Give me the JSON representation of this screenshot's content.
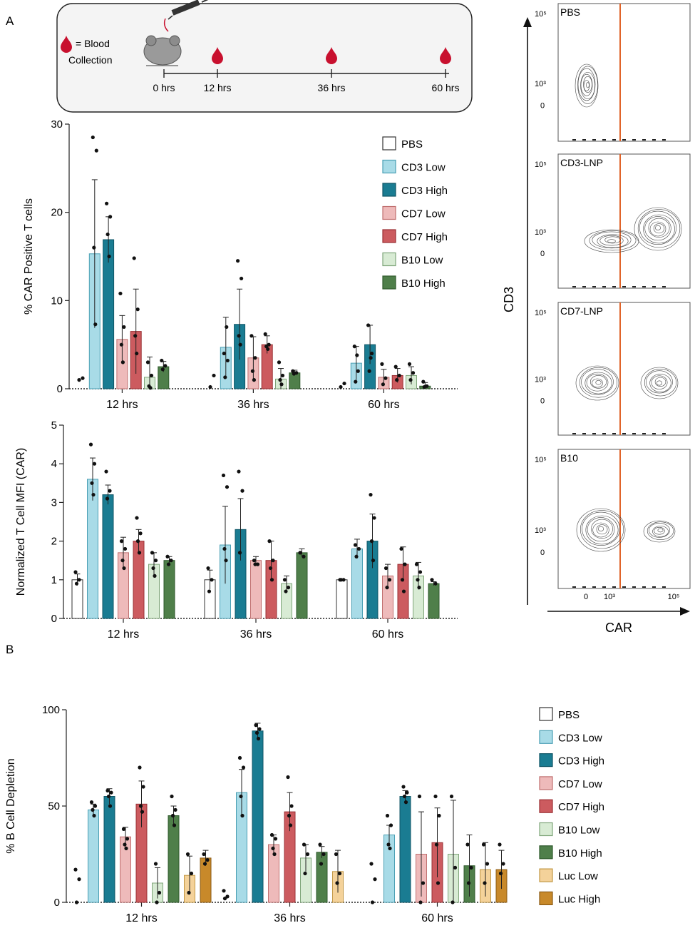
{
  "panels": {
    "a_label": "A",
    "b_label": "B"
  },
  "timeline": {
    "legend_line1": "= Blood",
    "legend_line2": "Collection",
    "times": [
      "0 hrs",
      "12 hrs",
      "36 hrs",
      "60 hrs"
    ],
    "blood_color": "#c8102e"
  },
  "series_meta": [
    {
      "name": "PBS",
      "fill": "#ffffff",
      "stroke": "#333333"
    },
    {
      "name": "CD3 Low",
      "fill": "#a8dbe7",
      "stroke": "#4a9fb4"
    },
    {
      "name": "CD3 High",
      "fill": "#1a7c92",
      "stroke": "#0f5566"
    },
    {
      "name": "CD7 Low",
      "fill": "#eebaba",
      "stroke": "#c07070"
    },
    {
      "name": "CD7 High",
      "fill": "#cc5b5f",
      "stroke": "#9a3034"
    },
    {
      "name": "B10 Low",
      "fill": "#d8ebd4",
      "stroke": "#7fa57a"
    },
    {
      "name": "B10 High",
      "fill": "#4f7f4a",
      "stroke": "#2f5a2c"
    },
    {
      "name": "Luc Low",
      "fill": "#f4d29a",
      "stroke": "#c29845"
    },
    {
      "name": "Luc  High",
      "fill": "#c8892a",
      "stroke": "#8a5a14"
    }
  ],
  "chart_data": [
    {
      "type": "bar",
      "title": "",
      "ylabel": "%  CAR Positive T cells",
      "xlabel": "",
      "categories": [
        "12 hrs",
        "36 hrs",
        "60 hrs"
      ],
      "ylim": [
        0,
        30
      ],
      "yticks": [
        "0",
        "10",
        "20",
        "30"
      ],
      "series": [
        {
          "name": "PBS",
          "values": [
            0,
            0,
            0
          ]
        },
        {
          "name": "CD3 Low",
          "values": [
            15.3,
            4.7,
            2.9
          ]
        },
        {
          "name": "CD3 High",
          "values": [
            16.9,
            7.3,
            5.0
          ]
        },
        {
          "name": "CD7 Low",
          "values": [
            5.6,
            3.5,
            1.3
          ]
        },
        {
          "name": "CD7 High",
          "values": [
            6.5,
            5.0,
            1.5
          ]
        },
        {
          "name": "B10 Low",
          "values": [
            1.3,
            1.1,
            1.5
          ]
        },
        {
          "name": "B10 High",
          "values": [
            2.5,
            1.8,
            0.3
          ]
        }
      ],
      "errors": [
        [
          0,
          0,
          0
        ],
        [
          8.4,
          3.4,
          1.9
        ],
        [
          2.6,
          4.0,
          2.2
        ],
        [
          2.7,
          2.4,
          0.9
        ],
        [
          4.8,
          1.0,
          0.8
        ],
        [
          2.3,
          1.2,
          1.0
        ],
        [
          0.6,
          0.3,
          0.4
        ]
      ],
      "points": [
        [
          [
            1.0,
            1.2
          ],
          [
            0.2,
            1.5
          ],
          [
            0.2,
            0.6
          ]
        ],
        [
          [
            28.5,
            27.0,
            16.0,
            7.3
          ],
          [
            4.0,
            3.2,
            1.3,
            7.0
          ],
          [
            4.8,
            2.0,
            0.8,
            3.8
          ]
        ],
        [
          [
            21.0,
            19.5,
            17.5,
            15.0
          ],
          [
            14.5,
            12.5,
            6.0,
            5.0
          ],
          [
            7.2,
            4.0,
            2.0,
            3.5
          ]
        ],
        [
          [
            10.8,
            7.0,
            5.0,
            3.0
          ],
          [
            6.0,
            3.5,
            2.0,
            1.0
          ],
          [
            2.8,
            1.2,
            0.5
          ]
        ],
        [
          [
            14.8,
            9.0,
            6.0,
            4.0
          ],
          [
            6.2,
            5.0,
            4.8,
            4.5
          ],
          [
            2.5,
            1.5,
            1.0
          ]
        ],
        [
          [
            3.0,
            1.5,
            0.3,
            0.1
          ],
          [
            3.0,
            1.5,
            1.0,
            0.5
          ],
          [
            2.8,
            1.8,
            1.0
          ]
        ],
        [
          [
            3.2,
            2.6,
            2.2
          ],
          [
            2.0,
            1.8,
            1.7
          ],
          [
            0.8,
            0.3,
            0.2
          ]
        ]
      ],
      "legend": "top-right"
    },
    {
      "type": "bar",
      "title": "",
      "ylabel": "Normalized T Cell MFI (CAR)",
      "xlabel": "",
      "categories": [
        "12 hrs",
        "36 hrs",
        "60 hrs"
      ],
      "ylim": [
        0,
        5
      ],
      "yticks": [
        "0",
        "1",
        "2",
        "3",
        "4",
        "5"
      ],
      "series": [
        {
          "name": "PBS",
          "values": [
            1.0,
            1.0,
            1.0
          ]
        },
        {
          "name": "CD3 Low",
          "values": [
            3.6,
            1.9,
            1.8
          ]
        },
        {
          "name": "CD3 High",
          "values": [
            3.2,
            2.3,
            2.0
          ]
        },
        {
          "name": "CD7 Low",
          "values": [
            1.7,
            1.5,
            1.1
          ]
        },
        {
          "name": "CD7 High",
          "values": [
            2.0,
            1.5,
            1.4
          ]
        },
        {
          "name": "B10 Low",
          "values": [
            1.4,
            0.9,
            1.1
          ]
        },
        {
          "name": "B10 High",
          "values": [
            1.5,
            1.7,
            0.9
          ]
        }
      ],
      "errors": [
        [
          0.15,
          0.25,
          0.02
        ],
        [
          0.55,
          1.0,
          0.25
        ],
        [
          0.25,
          0.8,
          0.7
        ],
        [
          0.4,
          0.1,
          0.3
        ],
        [
          0.3,
          0.5,
          0.45
        ],
        [
          0.3,
          0.2,
          0.35
        ],
        [
          0.1,
          0.1,
          0.05
        ]
      ],
      "points": [
        [
          [
            1.2,
            1.0,
            0.9
          ],
          [
            1.3,
            1.0,
            0.7
          ],
          [
            1.0,
            1.0,
            1.0
          ]
        ],
        [
          [
            4.5,
            4.0,
            3.5,
            3.2
          ],
          [
            3.7,
            3.4,
            1.8,
            1.5
          ],
          [
            1.9,
            1.8,
            1.6
          ]
        ],
        [
          [
            3.8,
            3.3,
            3.1
          ],
          [
            3.8,
            3.3,
            1.7
          ],
          [
            3.2,
            2.6,
            2.0,
            1.5
          ]
        ],
        [
          [
            2.0,
            1.8,
            1.5,
            1.3
          ],
          [
            1.5,
            1.4,
            1.4
          ],
          [
            1.3,
            1.0,
            0.8
          ]
        ],
        [
          [
            2.6,
            2.2,
            2.0,
            1.7
          ],
          [
            2.0,
            1.5,
            1.3,
            1.0
          ],
          [
            1.8,
            1.4,
            1.0,
            0.7
          ]
        ],
        [
          [
            1.7,
            1.5,
            1.3,
            1.1
          ],
          [
            1.0,
            0.8,
            0.7
          ],
          [
            1.4,
            1.2,
            1.0,
            0.8
          ]
        ],
        [
          [
            1.6,
            1.5,
            1.4
          ],
          [
            1.7,
            1.6
          ],
          [
            1.0,
            0.9
          ]
        ]
      ],
      "legend": "none"
    },
    {
      "type": "bar",
      "title": "",
      "ylabel": "% B Cell Depletion",
      "xlabel": "",
      "categories": [
        "12 hrs",
        "36 hrs",
        "60 hrs"
      ],
      "ylim": [
        0,
        100
      ],
      "yticks": [
        "0",
        "50",
        "100"
      ],
      "series": [
        {
          "name": "PBS",
          "values": [
            0,
            0,
            0
          ]
        },
        {
          "name": "CD3 Low",
          "values": [
            48,
            57,
            35
          ]
        },
        {
          "name": "CD3 High",
          "values": [
            55,
            89,
            55
          ]
        },
        {
          "name": "CD7 Low",
          "values": [
            34,
            30,
            25
          ]
        },
        {
          "name": "CD7 High",
          "values": [
            51,
            47,
            31
          ]
        },
        {
          "name": "B10 Low",
          "values": [
            10,
            23,
            25
          ]
        },
        {
          "name": "B10 High",
          "values": [
            45,
            26,
            19
          ]
        },
        {
          "name": "Luc Low",
          "values": [
            14,
            16,
            17
          ]
        },
        {
          "name": "Luc  High",
          "values": [
            23,
            0,
            17
          ]
        }
      ],
      "errors": [
        [
          0,
          0,
          0
        ],
        [
          3,
          12,
          5
        ],
        [
          4,
          4,
          3
        ],
        [
          5,
          5,
          22
        ],
        [
          12,
          10,
          18
        ],
        [
          8,
          7,
          28
        ],
        [
          5,
          3,
          16
        ],
        [
          10,
          11,
          14
        ],
        [
          4,
          0,
          10
        ]
      ],
      "points": [
        [
          [
            17,
            12,
            0
          ],
          [
            6,
            3,
            2
          ],
          [
            20,
            12,
            0
          ]
        ],
        [
          [
            52,
            50,
            48,
            45
          ],
          [
            75,
            70,
            55,
            45
          ],
          [
            45,
            40,
            30,
            28
          ]
        ],
        [
          [
            58,
            57,
            55,
            50
          ],
          [
            92,
            90,
            88,
            85
          ],
          [
            60,
            57,
            55,
            52
          ]
        ],
        [
          [
            38,
            33,
            30,
            28
          ],
          [
            35,
            33,
            28,
            25
          ],
          [
            55,
            10,
            0
          ]
        ],
        [
          [
            70,
            60,
            50,
            47
          ],
          [
            65,
            50,
            45,
            40
          ],
          [
            55,
            45,
            30,
            10
          ]
        ],
        [
          [
            20,
            5,
            0
          ],
          [
            30,
            25,
            15
          ],
          [
            55,
            18,
            0
          ]
        ],
        [
          [
            55,
            48,
            45,
            40
          ],
          [
            30,
            25,
            20
          ],
          [
            30,
            18,
            10
          ]
        ],
        [
          [
            25,
            15,
            5
          ],
          [
            25,
            15,
            10
          ],
          [
            30,
            20,
            10
          ]
        ],
        [
          [
            25,
            22,
            20
          ],
          [],
          [
            30,
            20,
            15
          ]
        ]
      ],
      "legend": "right"
    }
  ],
  "flow": {
    "samples": [
      "PBS",
      "CD3-LNP",
      "CD7-LNP",
      "B10"
    ],
    "y_ticks": [
      "10⁵",
      "10³",
      "0"
    ],
    "x_ticks": [
      "0",
      "10³",
      "10⁵"
    ],
    "y_axis_label": "CD3",
    "x_axis_label": "CAR",
    "gate_color": "#e0642a"
  }
}
